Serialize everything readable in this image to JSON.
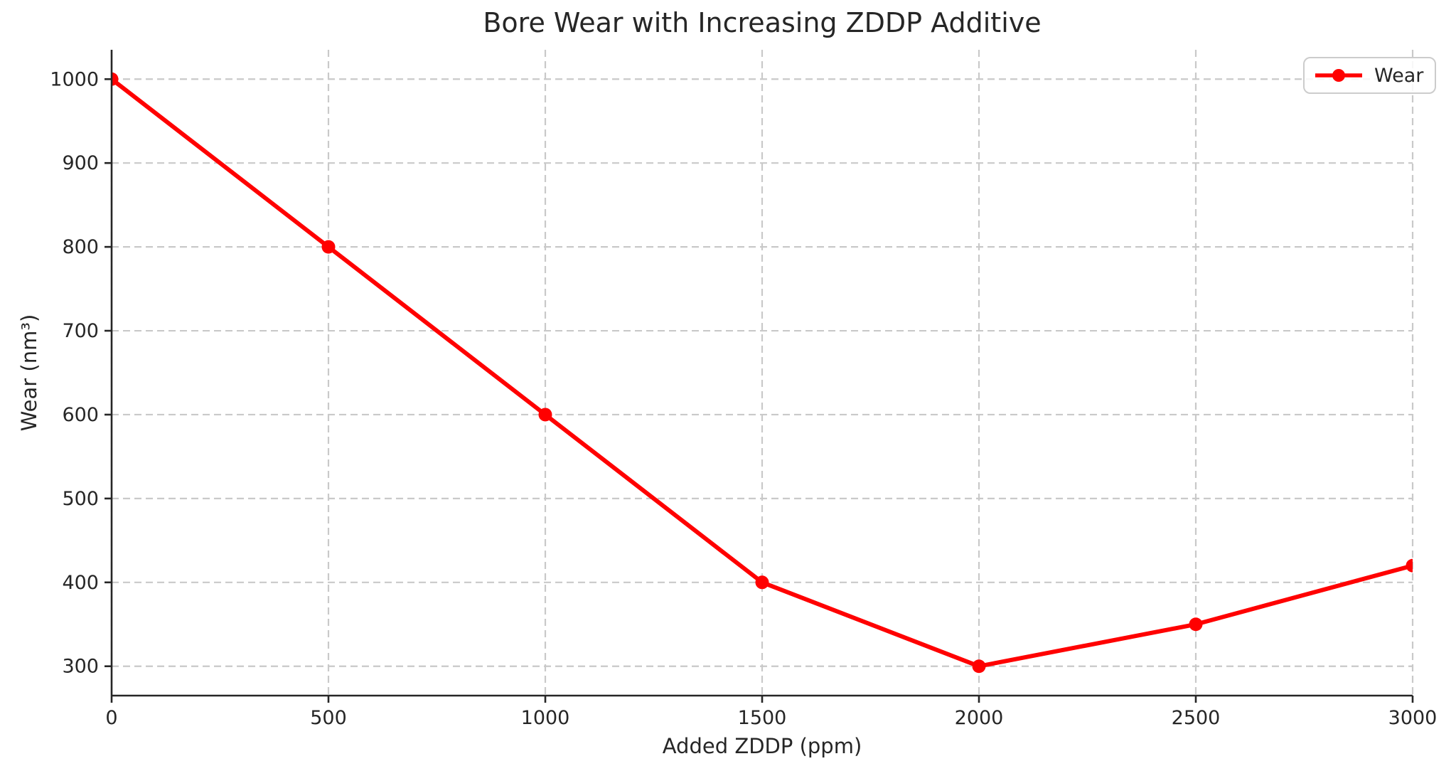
{
  "window": {
    "background": "#ffffff"
  },
  "colors": {
    "series": "#ff0000",
    "grid": "#c9c9c9",
    "axis": "#262626",
    "text": "#262626",
    "legend_border": "#cccccc",
    "background": "#ffffff"
  },
  "chart_data": {
    "type": "line",
    "title": "Bore Wear with Increasing ZDDP Additive",
    "xlabel": "Added ZDDP (ppm)",
    "ylabel": "Wear (nm³)",
    "x": [
      0,
      500,
      1000,
      1500,
      2000,
      2500,
      3000
    ],
    "series": [
      {
        "name": "Wear",
        "color": "#ff0000",
        "marker": "circle",
        "values": [
          1000,
          800,
          600,
          400,
          300,
          350,
          420
        ]
      }
    ],
    "xlim": [
      0,
      3000
    ],
    "ylim": [
      265,
      1035
    ],
    "xticks": [
      0,
      500,
      1000,
      1500,
      2000,
      2500,
      3000
    ],
    "xtick_labels": [
      "0",
      "500",
      "1000",
      "1500",
      "2000",
      "2500",
      "3000"
    ],
    "yticks": [
      300,
      400,
      500,
      600,
      700,
      800,
      900,
      1000
    ],
    "ytick_labels": [
      "300",
      "400",
      "500",
      "600",
      "700",
      "800",
      "900",
      "1000"
    ],
    "grid": {
      "visible": true,
      "style": "dashed"
    },
    "legend": {
      "position": "upper-right",
      "entries": [
        "Wear"
      ]
    }
  }
}
